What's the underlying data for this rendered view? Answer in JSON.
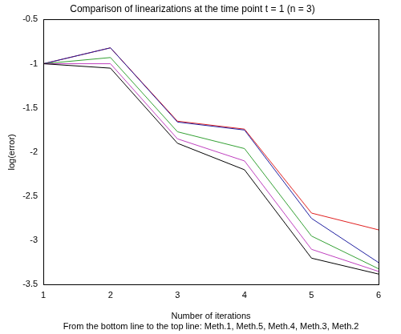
{
  "chart_data": {
    "type": "line",
    "title": "Comparison of linearizations at the time point t = 1 (n = 3)",
    "x_label": "Number of iterations",
    "caption": "From the bottom line to the top line: Meth.1, Meth.5, Meth.4, Meth.3, Meth.2",
    "y_label": "log(error)",
    "x": [
      1,
      2,
      3,
      4,
      5,
      6
    ],
    "series": [
      {
        "name": "Meth.1",
        "color": "#000000",
        "values": [
          -1.0,
          -1.05,
          -1.9,
          -2.2,
          -3.2,
          -3.38
        ]
      },
      {
        "name": "Meth.5",
        "color": "#bf40bf",
        "values": [
          -1.0,
          -1.0,
          -1.85,
          -2.1,
          -3.1,
          -3.35
        ]
      },
      {
        "name": "Meth.4",
        "color": "#33a033",
        "values": [
          -1.0,
          -0.93,
          -1.77,
          -1.96,
          -2.95,
          -3.32
        ]
      },
      {
        "name": "Meth.3",
        "color": "#1f1fa0",
        "values": [
          -1.0,
          -0.82,
          -1.66,
          -1.75,
          -2.75,
          -3.25
        ]
      },
      {
        "name": "Meth.2",
        "color": "#e02020",
        "values": [
          -1.0,
          -0.82,
          -1.65,
          -1.74,
          -2.69,
          -2.88
        ]
      }
    ],
    "xlim": [
      1,
      6
    ],
    "xticks": [
      1,
      2,
      3,
      4,
      5,
      6
    ],
    "ylim": [
      -3.5,
      -0.5
    ],
    "yticks": [
      -3.5,
      -3,
      -2.5,
      -2,
      -1.5,
      -1,
      -0.5
    ],
    "grid": false,
    "line_style": "solid",
    "marker": "none"
  }
}
